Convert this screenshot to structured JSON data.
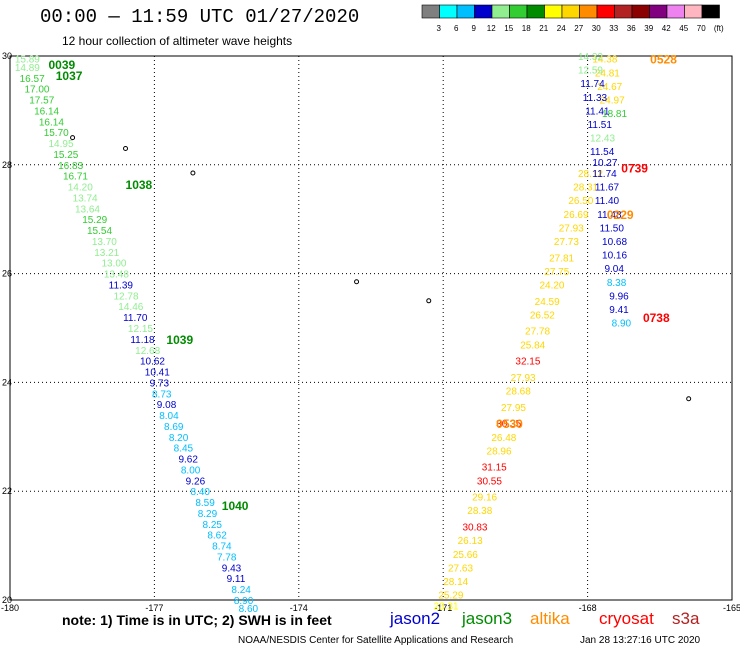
{
  "header": {
    "title": "00:00 — 11:59 UTC 01/27/2020",
    "subtitle": "12 hour collection of altimeter wave heights"
  },
  "colorbar": {
    "colors": [
      "#7f7f7f",
      "#00ffff",
      "#00bfff",
      "#0000cd",
      "#90ee90",
      "#32cd32",
      "#008b00",
      "#ffff00",
      "#ffd700",
      "#ff8c00",
      "#ff0000",
      "#b22222",
      "#8b0000",
      "#800080",
      "#ee82ee",
      "#ffb6c1",
      "#000000"
    ],
    "labels": [
      "3",
      "6",
      "9",
      "12",
      "15",
      "18",
      "21",
      "24",
      "27",
      "30",
      "33",
      "36",
      "39",
      "42",
      "45",
      "70",
      "(ft)"
    ]
  },
  "footer": {
    "note": "note:  1) Time is in UTC;  2) SWH is in feet",
    "credit": "NOAA/NESDIS Center for Satellite Applications and Research",
    "timestamp": "Jan 28 13:27:16 UTC 2020",
    "satellites": [
      {
        "name": "jason2",
        "color": "#0000cd"
      },
      {
        "name": "jason3",
        "color": "#008b00"
      },
      {
        "name": "altika",
        "color": "#ff8c00"
      },
      {
        "name": "cryosat",
        "color": "#ff0000"
      },
      {
        "name": "s3a",
        "color": "#b22222"
      }
    ]
  },
  "chart_data": {
    "type": "scatter",
    "title": "00:00 — 11:59 UTC 01/27/2020",
    "subtitle": "12 hour collection of altimeter wave heights",
    "xlim": [
      -180,
      -165
    ],
    "ylim": [
      20,
      30
    ],
    "x_ticks": [
      "-180",
      "-177",
      "-174",
      "-171",
      "-168",
      "-165"
    ],
    "y_ticks": [
      "30",
      "28",
      "26",
      "24",
      "22",
      "20"
    ],
    "grid": true,
    "time_labels": [
      {
        "text": "0039",
        "lon": -179.2,
        "lat": 29.85,
        "color": "#008b00"
      },
      {
        "text": "1037",
        "lon": -179.05,
        "lat": 29.65,
        "color": "#008b00"
      },
      {
        "text": "1038",
        "lon": -177.6,
        "lat": 27.65,
        "color": "#008b00"
      },
      {
        "text": "1039",
        "lon": -176.75,
        "lat": 24.8,
        "color": "#008b00"
      },
      {
        "text": "1040",
        "lon": -175.6,
        "lat": 21.75,
        "color": "#008b00"
      },
      {
        "text": "0528",
        "lon": -166.7,
        "lat": 29.95,
        "color": "#ff8c00"
      },
      {
        "text": "0739",
        "lon": -167.3,
        "lat": 27.95,
        "color": "#ff0000"
      },
      {
        "text": "0229",
        "lon": -167.6,
        "lat": 27.1,
        "color": "#ff8c00"
      },
      {
        "text": "0738",
        "lon": -166.85,
        "lat": 25.2,
        "color": "#ff0000"
      },
      {
        "text": "0530",
        "lon": -169.9,
        "lat": 23.25,
        "color": "#ff8c00"
      }
    ],
    "series": [
      {
        "name": "jason3",
        "points": [
          {
            "lon": -179.9,
            "lat": 29.95,
            "swh": "15.89",
            "color": "#90ee90"
          },
          {
            "lon": -179.9,
            "lat": 29.8,
            "swh": "14.89",
            "color": "#90ee90"
          },
          {
            "lon": -179.8,
            "lat": 29.6,
            "swh": "16.57",
            "color": "#32cd32"
          },
          {
            "lon": -179.7,
            "lat": 29.4,
            "swh": "17.00",
            "color": "#32cd32"
          },
          {
            "lon": -179.6,
            "lat": 29.2,
            "swh": "17.57",
            "color": "#32cd32"
          },
          {
            "lon": -179.5,
            "lat": 29.0,
            "swh": "16.14",
            "color": "#32cd32"
          },
          {
            "lon": -179.4,
            "lat": 28.8,
            "swh": "16.14",
            "color": "#32cd32"
          },
          {
            "lon": -179.3,
            "lat": 28.6,
            "swh": "15.70",
            "color": "#32cd32"
          },
          {
            "lon": -179.2,
            "lat": 28.4,
            "swh": "14.95",
            "color": "#90ee90"
          },
          {
            "lon": -179.1,
            "lat": 28.2,
            "swh": "15.25",
            "color": "#32cd32"
          },
          {
            "lon": -179.0,
            "lat": 28.0,
            "swh": "16.83",
            "color": "#32cd32"
          },
          {
            "lon": -178.9,
            "lat": 27.8,
            "swh": "16.71",
            "color": "#32cd32"
          },
          {
            "lon": -178.8,
            "lat": 27.6,
            "swh": "14.20",
            "color": "#90ee90"
          },
          {
            "lon": -178.7,
            "lat": 27.4,
            "swh": "13.74",
            "color": "#90ee90"
          },
          {
            "lon": -178.65,
            "lat": 27.2,
            "swh": "13.64",
            "color": "#90ee90"
          },
          {
            "lon": -178.5,
            "lat": 27.0,
            "swh": "15.29",
            "color": "#32cd32"
          },
          {
            "lon": -178.4,
            "lat": 26.8,
            "swh": "15.54",
            "color": "#32cd32"
          },
          {
            "lon": -178.3,
            "lat": 26.6,
            "swh": "13.70",
            "color": "#90ee90"
          },
          {
            "lon": -178.25,
            "lat": 26.4,
            "swh": "13.21",
            "color": "#90ee90"
          },
          {
            "lon": -178.1,
            "lat": 26.2,
            "swh": "13.00",
            "color": "#90ee90"
          },
          {
            "lon": -178.05,
            "lat": 26.0,
            "swh": "13.48",
            "color": "#90ee90"
          },
          {
            "lon": -177.95,
            "lat": 25.8,
            "swh": "11.39",
            "color": "#0000cd"
          },
          {
            "lon": -177.85,
            "lat": 25.6,
            "swh": "12.78",
            "color": "#90ee90"
          },
          {
            "lon": -177.75,
            "lat": 25.4,
            "swh": "14.46",
            "color": "#90ee90"
          },
          {
            "lon": -177.65,
            "lat": 25.2,
            "swh": "11.70",
            "color": "#0000cd"
          },
          {
            "lon": -177.55,
            "lat": 25.0,
            "swh": "12.15",
            "color": "#90ee90"
          },
          {
            "lon": -177.5,
            "lat": 24.8,
            "swh": "11.18",
            "color": "#0000cd"
          },
          {
            "lon": -177.4,
            "lat": 24.6,
            "swh": "12.68",
            "color": "#90ee90"
          },
          {
            "lon": -177.3,
            "lat": 24.4,
            "swh": "10.62",
            "color": "#0000cd"
          },
          {
            "lon": -177.2,
            "lat": 24.2,
            "swh": "10.41",
            "color": "#0000cd"
          },
          {
            "lon": -177.1,
            "lat": 24.0,
            "swh": "9.73",
            "color": "#0000cd"
          },
          {
            "lon": -177.05,
            "lat": 23.8,
            "swh": "8.73",
            "color": "#00bfff"
          },
          {
            "lon": -176.95,
            "lat": 23.6,
            "swh": "9.08",
            "color": "#0000cd"
          },
          {
            "lon": -176.9,
            "lat": 23.4,
            "swh": "8.04",
            "color": "#00bfff"
          },
          {
            "lon": -176.8,
            "lat": 23.2,
            "swh": "8.69",
            "color": "#00bfff"
          },
          {
            "lon": -176.7,
            "lat": 23.0,
            "swh": "8.20",
            "color": "#00bfff"
          },
          {
            "lon": -176.6,
            "lat": 22.8,
            "swh": "8.45",
            "color": "#00bfff"
          },
          {
            "lon": -176.5,
            "lat": 22.6,
            "swh": "9.62",
            "color": "#0000cd"
          },
          {
            "lon": -176.45,
            "lat": 22.4,
            "swh": "8.00",
            "color": "#00bfff"
          },
          {
            "lon": -176.35,
            "lat": 22.2,
            "swh": "9.26",
            "color": "#0000cd"
          },
          {
            "lon": -176.25,
            "lat": 22.0,
            "swh": "8.40",
            "color": "#00bfff"
          },
          {
            "lon": -176.15,
            "lat": 21.8,
            "swh": "8.59",
            "color": "#00bfff"
          },
          {
            "lon": -176.1,
            "lat": 21.6,
            "swh": "8.29",
            "color": "#00bfff"
          },
          {
            "lon": -176.0,
            "lat": 21.4,
            "swh": "8.25",
            "color": "#00bfff"
          },
          {
            "lon": -175.9,
            "lat": 21.2,
            "swh": "8.62",
            "color": "#00bfff"
          },
          {
            "lon": -175.8,
            "lat": 21.0,
            "swh": "8.74",
            "color": "#00bfff"
          },
          {
            "lon": -175.7,
            "lat": 20.8,
            "swh": "7.78",
            "color": "#00bfff"
          },
          {
            "lon": -175.6,
            "lat": 20.6,
            "swh": "9.43",
            "color": "#0000cd"
          },
          {
            "lon": -175.5,
            "lat": 20.4,
            "swh": "9.11",
            "color": "#0000cd"
          },
          {
            "lon": -175.4,
            "lat": 20.2,
            "swh": "8.24",
            "color": "#00bfff"
          },
          {
            "lon": -175.35,
            "lat": 20.0,
            "swh": "8.90",
            "color": "#00bfff"
          },
          {
            "lon": -175.25,
            "lat": 19.85,
            "swh": "8.60",
            "color": "#00bfff"
          }
        ]
      },
      {
        "name": "altika",
        "points": [
          {
            "lon": -171.2,
            "lat": 19.9,
            "swh": "23.31",
            "color": "#ffff00"
          },
          {
            "lon": -171.1,
            "lat": 20.1,
            "swh": "25.29",
            "color": "#ffd700"
          },
          {
            "lon": -171.0,
            "lat": 20.35,
            "swh": "28.14",
            "color": "#ffd700"
          },
          {
            "lon": -170.9,
            "lat": 20.6,
            "swh": "27.63",
            "color": "#ffd700"
          },
          {
            "lon": -170.8,
            "lat": 20.85,
            "swh": "25.66",
            "color": "#ffd700"
          },
          {
            "lon": -170.7,
            "lat": 21.1,
            "swh": "26.13",
            "color": "#ffd700"
          },
          {
            "lon": -170.6,
            "lat": 21.35,
            "swh": "30.83",
            "color": "#ff0000"
          },
          {
            "lon": -170.5,
            "lat": 21.65,
            "swh": "28.38",
            "color": "#ffd700"
          },
          {
            "lon": -170.4,
            "lat": 21.9,
            "swh": "29.16",
            "color": "#ffd700"
          },
          {
            "lon": -170.3,
            "lat": 22.2,
            "swh": "30.55",
            "color": "#ff0000"
          },
          {
            "lon": -170.2,
            "lat": 22.45,
            "swh": "31.15",
            "color": "#ff0000"
          },
          {
            "lon": -170.1,
            "lat": 22.75,
            "swh": "28.96",
            "color": "#ffd700"
          },
          {
            "lon": -170.0,
            "lat": 23.0,
            "swh": "26.48",
            "color": "#ffd700"
          },
          {
            "lon": -169.9,
            "lat": 23.25,
            "swh": "30.35",
            "color": "#ff0000"
          },
          {
            "lon": -169.8,
            "lat": 23.55,
            "swh": "27.95",
            "color": "#ffd700"
          },
          {
            "lon": -169.7,
            "lat": 23.85,
            "swh": "28.68",
            "color": "#ffd700"
          },
          {
            "lon": -169.6,
            "lat": 24.1,
            "swh": "27.93",
            "color": "#ffd700"
          },
          {
            "lon": -169.5,
            "lat": 24.4,
            "swh": "32.15",
            "color": "#ff0000"
          },
          {
            "lon": -169.4,
            "lat": 24.7,
            "swh": "25.84",
            "color": "#ffd700"
          },
          {
            "lon": -169.3,
            "lat": 24.95,
            "swh": "27.78",
            "color": "#ffd700"
          },
          {
            "lon": -169.2,
            "lat": 25.25,
            "swh": "26.52",
            "color": "#ffd700"
          },
          {
            "lon": -169.1,
            "lat": 25.5,
            "swh": "24.59",
            "color": "#ffd700"
          },
          {
            "lon": -169.0,
            "lat": 25.8,
            "swh": "24.20",
            "color": "#ffd700"
          },
          {
            "lon": -168.9,
            "lat": 26.05,
            "swh": "27.75",
            "color": "#ffd700"
          },
          {
            "lon": -168.8,
            "lat": 26.3,
            "swh": "27.81",
            "color": "#ffd700"
          },
          {
            "lon": -168.7,
            "lat": 26.6,
            "swh": "27.73",
            "color": "#ffd700"
          },
          {
            "lon": -168.6,
            "lat": 26.85,
            "swh": "27.93",
            "color": "#ffd700"
          },
          {
            "lon": -168.5,
            "lat": 27.1,
            "swh": "26.69",
            "color": "#ffd700"
          },
          {
            "lon": -168.4,
            "lat": 27.35,
            "swh": "26.50",
            "color": "#ffd700"
          },
          {
            "lon": -168.3,
            "lat": 27.6,
            "swh": "28.31",
            "color": "#ffd700"
          },
          {
            "lon": -168.2,
            "lat": 27.85,
            "swh": "28.12",
            "color": "#ffd700"
          }
        ]
      },
      {
        "name": "altika-north",
        "points": [
          {
            "lon": -167.9,
            "lat": 29.95,
            "swh": "14.38",
            "color": "#ffd700"
          },
          {
            "lon": -167.85,
            "lat": 29.7,
            "swh": "24.81",
            "color": "#ffd700"
          },
          {
            "lon": -167.8,
            "lat": 29.45,
            "swh": "24.67",
            "color": "#ffd700"
          },
          {
            "lon": -167.75,
            "lat": 29.2,
            "swh": "24.97",
            "color": "#ffd700"
          },
          {
            "lon": -167.7,
            "lat": 28.95,
            "swh": "18.81",
            "color": "#32cd32"
          }
        ]
      },
      {
        "name": "cryosat",
        "points": [
          {
            "lon": -168.2,
            "lat": 30.0,
            "swh": "14.32",
            "color": "#90ee90"
          },
          {
            "lon": -168.2,
            "lat": 29.75,
            "swh": "12.59",
            "color": "#90ee90"
          },
          {
            "lon": -168.15,
            "lat": 29.5,
            "swh": "11.74",
            "color": "#0000cd"
          },
          {
            "lon": -168.1,
            "lat": 29.25,
            "swh": "11.33",
            "color": "#0000cd"
          },
          {
            "lon": -168.05,
            "lat": 29.0,
            "swh": "11.41",
            "color": "#0000cd"
          },
          {
            "lon": -168.0,
            "lat": 28.75,
            "swh": "11.51",
            "color": "#0000cd"
          },
          {
            "lon": -167.95,
            "lat": 28.5,
            "swh": "12.43",
            "color": "#90ee90"
          },
          {
            "lon": -167.95,
            "lat": 28.25,
            "swh": "11.54",
            "color": "#0000cd"
          },
          {
            "lon": -167.9,
            "lat": 28.05,
            "swh": "10.27",
            "color": "#0000cd"
          },
          {
            "lon": -167.9,
            "lat": 27.85,
            "swh": "11.74",
            "color": "#0000cd"
          },
          {
            "lon": -167.85,
            "lat": 27.6,
            "swh": "11.67",
            "color": "#0000cd"
          },
          {
            "lon": -167.85,
            "lat": 27.35,
            "swh": "11.40",
            "color": "#0000cd"
          },
          {
            "lon": -167.8,
            "lat": 27.1,
            "swh": "11.48",
            "color": "#0000cd"
          },
          {
            "lon": -167.75,
            "lat": 26.85,
            "swh": "11.50",
            "color": "#0000cd"
          },
          {
            "lon": -167.7,
            "lat": 26.6,
            "swh": "10.68",
            "color": "#0000cd"
          },
          {
            "lon": -167.7,
            "lat": 26.35,
            "swh": "10.16",
            "color": "#0000cd"
          },
          {
            "lon": -167.65,
            "lat": 26.1,
            "swh": "9.04",
            "color": "#0000cd"
          },
          {
            "lon": -167.6,
            "lat": 25.85,
            "swh": "8.38",
            "color": "#00bfff"
          },
          {
            "lon": -167.55,
            "lat": 25.6,
            "swh": "9.96",
            "color": "#0000cd"
          },
          {
            "lon": -167.55,
            "lat": 25.35,
            "swh": "9.41",
            "color": "#0000cd"
          },
          {
            "lon": -167.5,
            "lat": 25.1,
            "swh": "8.90",
            "color": "#00bfff"
          }
        ]
      }
    ]
  }
}
